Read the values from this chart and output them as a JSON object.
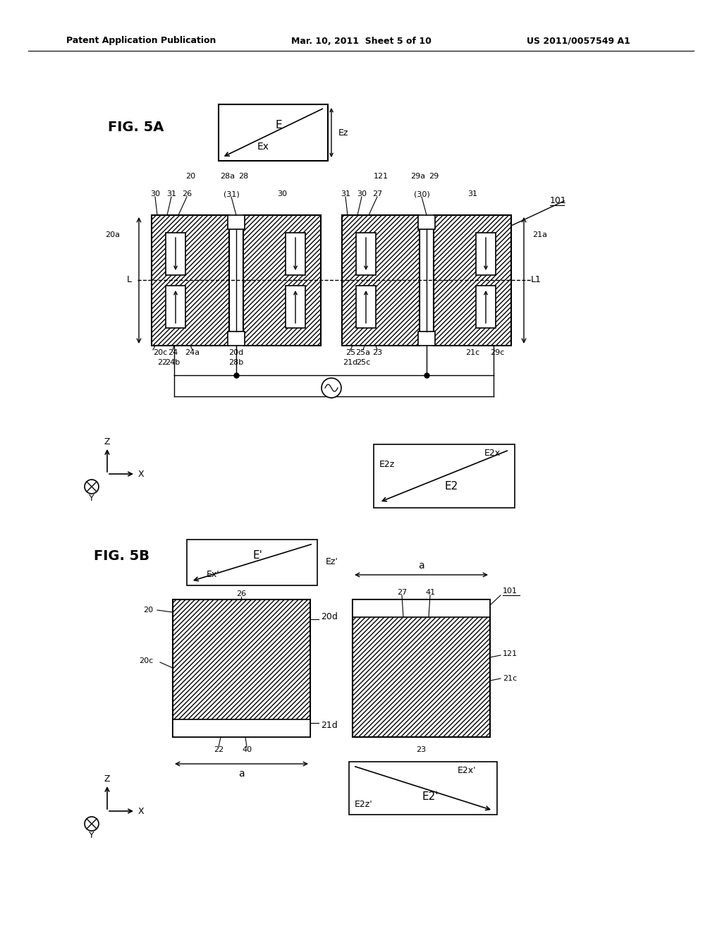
{
  "title_left": "Patent Application Publication",
  "title_mid": "Mar. 10, 2011  Sheet 5 of 10",
  "title_right": "US 2011/0057549 A1",
  "fig5a_label": "FIG. 5A",
  "fig5b_label": "FIG. 5B",
  "bg_color": "#ffffff",
  "line_color": "#000000"
}
